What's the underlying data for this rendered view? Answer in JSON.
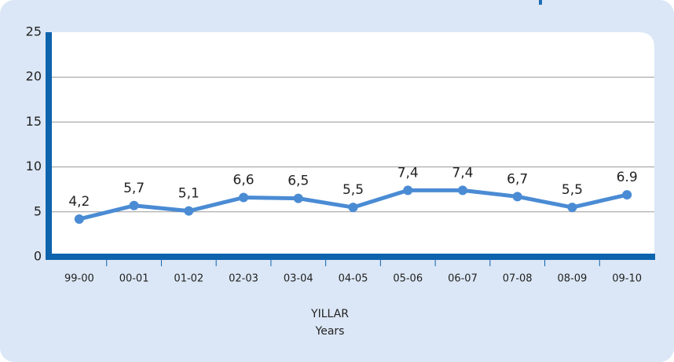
{
  "chart_data": {
    "type": "line",
    "categories": [
      "99-00",
      "00-01",
      "01-02",
      "02-03",
      "03-04",
      "04-05",
      "05-06",
      "06-07",
      "07-08",
      "08-09",
      "09-10"
    ],
    "values": [
      4.2,
      5.7,
      5.1,
      6.6,
      6.5,
      5.5,
      7.4,
      7.4,
      6.7,
      5.5,
      6.9
    ],
    "value_labels": [
      "4,2",
      "5,7",
      "5,1",
      "6,6",
      "6,5",
      "5,5",
      "7,4",
      "7,4",
      "6,7",
      "5,5",
      "6.9"
    ],
    "color": "#4a8bd4",
    "ylim": [
      0,
      25
    ],
    "yticks": [
      0,
      5,
      10,
      15,
      20,
      25
    ],
    "grid": true,
    "xlabel": "YILLAR",
    "xlabel_sub": "Years"
  }
}
